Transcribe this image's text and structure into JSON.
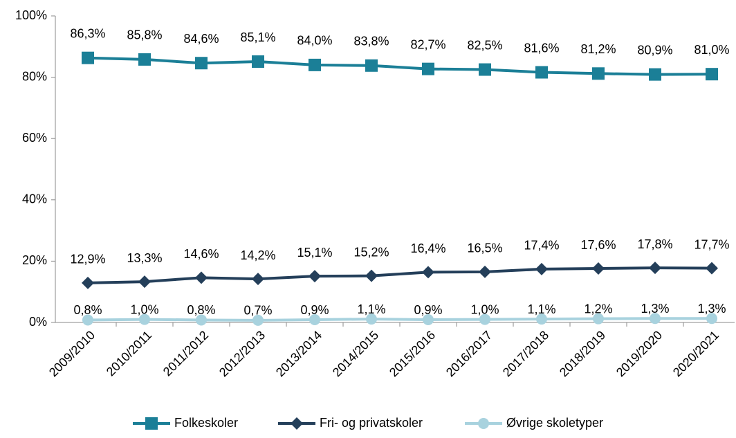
{
  "chart_data": {
    "type": "line",
    "categories": [
      "2009/2010",
      "2010/2011",
      "2011/2012",
      "2012/2013",
      "2013/2014",
      "2014/2015",
      "2015/2016",
      "2016/2017",
      "2017/2018",
      "2018/2019",
      "2019/2020",
      "2020/2021"
    ],
    "series": [
      {
        "name": "Folkeskoler",
        "color": "#1b7f97",
        "marker": "square",
        "values": [
          86.3,
          85.8,
          84.6,
          85.1,
          84.0,
          83.8,
          82.7,
          82.5,
          81.6,
          81.2,
          80.9,
          81.0
        ],
        "value_labels": [
          "86,3%",
          "85,8%",
          "84,6%",
          "85,1%",
          "84,0%",
          "83,8%",
          "82,7%",
          "82,5%",
          "81,6%",
          "81,2%",
          "80,9%",
          "81,0%"
        ]
      },
      {
        "name": "Fri- og privatskoler",
        "color": "#243f5a",
        "marker": "diamond",
        "values": [
          12.9,
          13.3,
          14.6,
          14.2,
          15.1,
          15.2,
          16.4,
          16.5,
          17.4,
          17.6,
          17.8,
          17.7
        ],
        "value_labels": [
          "12,9%",
          "13,3%",
          "14,6%",
          "14,2%",
          "15,1%",
          "15,2%",
          "16,4%",
          "16,5%",
          "17,4%",
          "17,6%",
          "17,8%",
          "17,7%"
        ]
      },
      {
        "name": "Øvrige skoletyper",
        "color": "#a8d2de",
        "marker": "circle",
        "values": [
          0.8,
          1.0,
          0.8,
          0.7,
          0.9,
          1.1,
          0.9,
          1.0,
          1.1,
          1.2,
          1.3,
          1.3
        ],
        "value_labels": [
          "0,8%",
          "1,0%",
          "0,8%",
          "0,7%",
          "0,9%",
          "1,1%",
          "0,9%",
          "1,0%",
          "1,1%",
          "1,2%",
          "1,3%",
          "1,3%"
        ]
      }
    ],
    "ylim": [
      0,
      100
    ],
    "yticks": [
      {
        "value": 0,
        "label": "0%"
      },
      {
        "value": 20,
        "label": "20%"
      },
      {
        "value": 40,
        "label": "40%"
      },
      {
        "value": 60,
        "label": "60%"
      },
      {
        "value": 80,
        "label": "80%"
      },
      {
        "value": 100,
        "label": "100%"
      }
    ],
    "grid": false,
    "legend": "bottom"
  }
}
